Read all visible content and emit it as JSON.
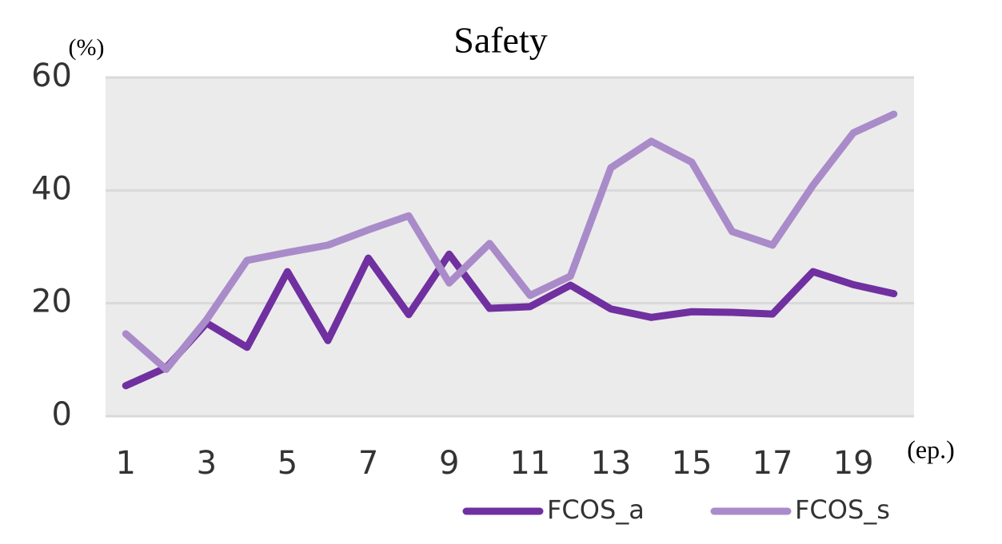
{
  "chart_data": {
    "type": "line",
    "title": "Safety",
    "y_unit": "(%)",
    "x_unit": "(ep.)",
    "categories": [
      "1",
      null,
      "3",
      null,
      "5",
      null,
      "7",
      null,
      "9",
      null,
      "11",
      null,
      "13",
      null,
      "15",
      null,
      "17",
      null,
      "19",
      null
    ],
    "series": [
      {
        "name": "FCOS_a",
        "color": "#7030a0",
        "values": [
          5.4,
          8.6,
          16.5,
          12.2,
          25.6,
          13.4,
          28.0,
          18.0,
          28.7,
          19.1,
          19.4,
          23.2,
          19.0,
          17.5,
          18.5,
          18.4,
          18.1,
          25.6,
          23.3,
          21.7
        ]
      },
      {
        "name": "FCOS_s",
        "color": "#a98bc9",
        "values": [
          14.6,
          8.3,
          17.1,
          27.6,
          29.0,
          30.3,
          33.0,
          35.5,
          23.6,
          30.6,
          21.4,
          24.8,
          44.0,
          48.7,
          45.0,
          32.7,
          30.3,
          40.9,
          50.2,
          53.5
        ]
      }
    ],
    "ylim": [
      0,
      60
    ],
    "yticks": [
      0,
      20,
      40,
      60
    ],
    "grid": true,
    "legend": "bottom"
  }
}
